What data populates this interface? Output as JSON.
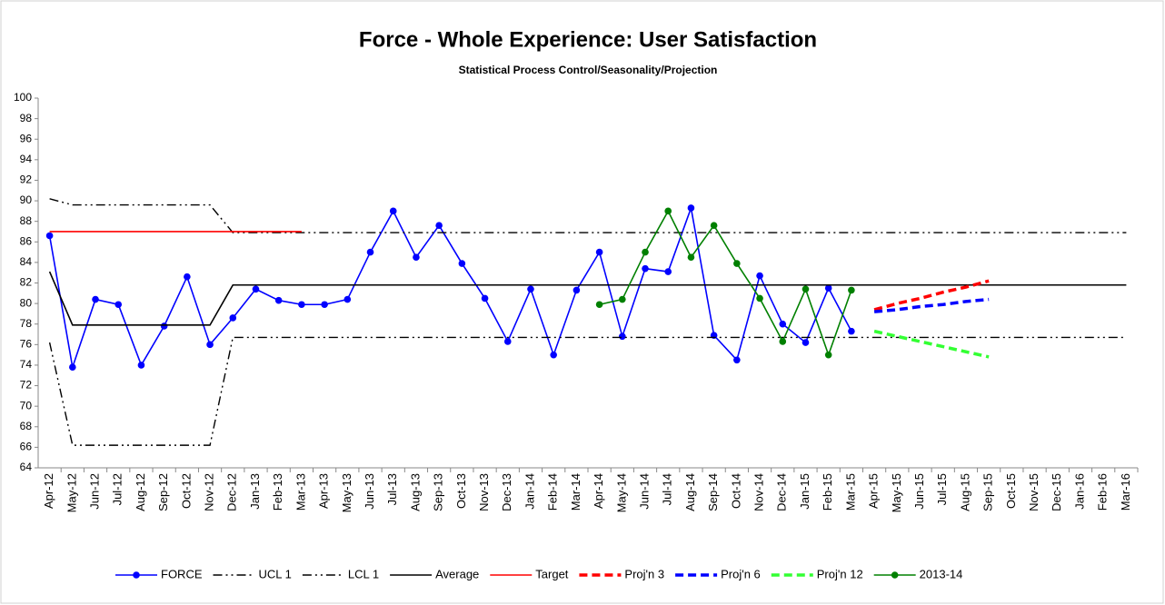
{
  "chart_data": {
    "type": "line",
    "title": "Force - Whole Experience: User Satisfaction",
    "subtitle": "Statistical Process Control/Seasonality/Projection",
    "categories": [
      "Apr-12",
      "May-12",
      "Jun-12",
      "Jul-12",
      "Aug-12",
      "Sep-12",
      "Oct-12",
      "Nov-12",
      "Dec-12",
      "Jan-13",
      "Feb-13",
      "Mar-13",
      "Apr-13",
      "May-13",
      "Jun-13",
      "Jul-13",
      "Aug-13",
      "Sep-13",
      "Oct-13",
      "Nov-13",
      "Dec-13",
      "Jan-14",
      "Feb-14",
      "Mar-14",
      "Apr-14",
      "May-14",
      "Jun-14",
      "Jul-14",
      "Aug-14",
      "Sep-14",
      "Oct-14",
      "Nov-14",
      "Dec-14",
      "Jan-15",
      "Feb-15",
      "Mar-15",
      "Apr-15",
      "May-15",
      "Jun-15",
      "Jul-15",
      "Aug-15",
      "Sep-15",
      "Oct-15",
      "Nov-15",
      "Dec-15",
      "Jan-16",
      "Feb-16",
      "Mar-16"
    ],
    "ylim": [
      64,
      100
    ],
    "yticks": [
      64,
      66,
      68,
      70,
      72,
      74,
      76,
      78,
      80,
      82,
      84,
      86,
      88,
      90,
      92,
      94,
      96,
      98,
      100
    ],
    "legend": "bottom",
    "series": [
      {
        "name": "FORCE",
        "color": "#0000ff",
        "dash": "solid",
        "marker": true,
        "values": [
          86.6,
          73.8,
          80.4,
          79.9,
          74.0,
          77.8,
          82.6,
          76.0,
          78.6,
          81.4,
          80.3,
          79.9,
          79.9,
          80.4,
          85.0,
          89.0,
          84.5,
          87.6,
          83.9,
          80.5,
          76.3,
          81.4,
          75.0,
          81.3,
          85.0,
          76.8,
          83.4,
          83.1,
          89.3,
          76.9,
          74.5,
          82.7,
          78.0,
          76.2,
          81.5,
          77.3,
          null,
          null,
          null,
          null,
          null,
          null,
          null,
          null,
          null,
          null,
          null,
          null
        ]
      },
      {
        "name": "UCL 1",
        "color": "#000000",
        "dash": "dashdotdot",
        "marker": false,
        "values": [
          90.2,
          89.6,
          89.6,
          89.6,
          89.6,
          89.6,
          89.6,
          89.6,
          86.9,
          86.9,
          86.9,
          86.9,
          86.9,
          86.9,
          86.9,
          86.9,
          86.9,
          86.9,
          86.9,
          86.9,
          86.9,
          86.9,
          86.9,
          86.9,
          86.9,
          86.9,
          86.9,
          86.9,
          86.9,
          86.9,
          86.9,
          86.9,
          86.9,
          86.9,
          86.9,
          86.9,
          86.9,
          86.9,
          86.9,
          86.9,
          86.9,
          86.9,
          86.9,
          86.9,
          86.9,
          86.9,
          86.9,
          86.9
        ]
      },
      {
        "name": "LCL 1",
        "color": "#000000",
        "dash": "dashdotdot",
        "marker": false,
        "values": [
          76.2,
          66.2,
          66.2,
          66.2,
          66.2,
          66.2,
          66.2,
          66.2,
          76.7,
          76.7,
          76.7,
          76.7,
          76.7,
          76.7,
          76.7,
          76.7,
          76.7,
          76.7,
          76.7,
          76.7,
          76.7,
          76.7,
          76.7,
          76.7,
          76.7,
          76.7,
          76.7,
          76.7,
          76.7,
          76.7,
          76.7,
          76.7,
          76.7,
          76.7,
          76.7,
          76.7,
          76.7,
          76.7,
          76.7,
          76.7,
          76.7,
          76.7,
          76.7,
          76.7,
          76.7,
          76.7,
          76.7,
          76.7
        ]
      },
      {
        "name": "Average",
        "color": "#000000",
        "dash": "solid",
        "marker": false,
        "values": [
          83.1,
          77.9,
          77.9,
          77.9,
          77.9,
          77.9,
          77.9,
          77.9,
          81.8,
          81.8,
          81.8,
          81.8,
          81.8,
          81.8,
          81.8,
          81.8,
          81.8,
          81.8,
          81.8,
          81.8,
          81.8,
          81.8,
          81.8,
          81.8,
          81.8,
          81.8,
          81.8,
          81.8,
          81.8,
          81.8,
          81.8,
          81.8,
          81.8,
          81.8,
          81.8,
          81.8,
          81.8,
          81.8,
          81.8,
          81.8,
          81.8,
          81.8,
          81.8,
          81.8,
          81.8,
          81.8,
          81.8,
          81.8
        ]
      },
      {
        "name": "Target",
        "color": "#ff0000",
        "dash": "solid",
        "marker": false,
        "values": [
          87,
          87,
          87,
          87,
          87,
          87,
          87,
          87,
          87,
          87,
          87,
          87,
          null,
          null,
          null,
          null,
          null,
          null,
          null,
          null,
          null,
          null,
          null,
          null,
          null,
          null,
          null,
          null,
          null,
          null,
          null,
          null,
          null,
          null,
          null,
          null,
          null,
          null,
          null,
          null,
          null,
          null,
          null,
          null,
          null,
          null,
          null,
          null
        ]
      },
      {
        "name": "Proj'n 3",
        "color": "#ff0000",
        "dash": "dashed",
        "marker": false,
        "values": [
          null,
          null,
          null,
          null,
          null,
          null,
          null,
          null,
          null,
          null,
          null,
          null,
          null,
          null,
          null,
          null,
          null,
          null,
          null,
          null,
          null,
          null,
          null,
          null,
          null,
          null,
          null,
          null,
          null,
          null,
          null,
          null,
          null,
          null,
          null,
          null,
          79.4,
          80.0,
          80.5,
          81.1,
          81.6,
          82.2,
          null,
          null,
          null,
          null,
          null,
          null
        ]
      },
      {
        "name": "Proj'n 6",
        "color": "#0000ff",
        "dash": "dashed",
        "marker": false,
        "values": [
          null,
          null,
          null,
          null,
          null,
          null,
          null,
          null,
          null,
          null,
          null,
          null,
          null,
          null,
          null,
          null,
          null,
          null,
          null,
          null,
          null,
          null,
          null,
          null,
          null,
          null,
          null,
          null,
          null,
          null,
          null,
          null,
          null,
          null,
          null,
          null,
          79.2,
          79.4,
          79.7,
          79.9,
          80.2,
          80.4,
          null,
          null,
          null,
          null,
          null,
          null
        ]
      },
      {
        "name": "Proj'n 12",
        "color": "#33ff33",
        "dash": "dashed",
        "marker": false,
        "values": [
          null,
          null,
          null,
          null,
          null,
          null,
          null,
          null,
          null,
          null,
          null,
          null,
          null,
          null,
          null,
          null,
          null,
          null,
          null,
          null,
          null,
          null,
          null,
          null,
          null,
          null,
          null,
          null,
          null,
          null,
          null,
          null,
          null,
          null,
          null,
          null,
          77.3,
          76.8,
          76.3,
          75.8,
          75.3,
          74.8,
          null,
          null,
          null,
          null,
          null,
          null
        ]
      },
      {
        "name": "2013-14",
        "color": "#008000",
        "dash": "solid",
        "marker": true,
        "values": [
          null,
          null,
          null,
          null,
          null,
          null,
          null,
          null,
          null,
          null,
          null,
          null,
          null,
          null,
          null,
          null,
          null,
          null,
          null,
          null,
          null,
          null,
          null,
          null,
          79.9,
          80.4,
          85.0,
          89.0,
          84.5,
          87.6,
          83.9,
          80.5,
          76.3,
          81.4,
          75.0,
          81.3,
          null,
          null,
          null,
          null,
          null,
          null,
          null,
          null,
          null,
          null,
          null,
          null
        ]
      }
    ]
  }
}
